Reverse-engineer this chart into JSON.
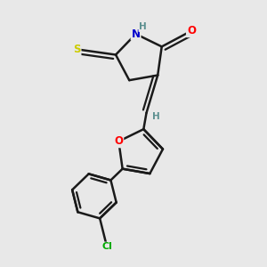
{
  "bg_color": "#e8e8e8",
  "bond_color": "#1a1a1a",
  "bond_width": 1.8,
  "atom_colors": {
    "N": "#0000cc",
    "O": "#ff0000",
    "S_thioxo": "#cccc00",
    "S_ring": "#1a1a1a",
    "Cl": "#00aa00",
    "H": "#5c9090",
    "C": "#1a1a1a"
  },
  "figsize": [
    3.0,
    3.0
  ],
  "dpi": 100
}
